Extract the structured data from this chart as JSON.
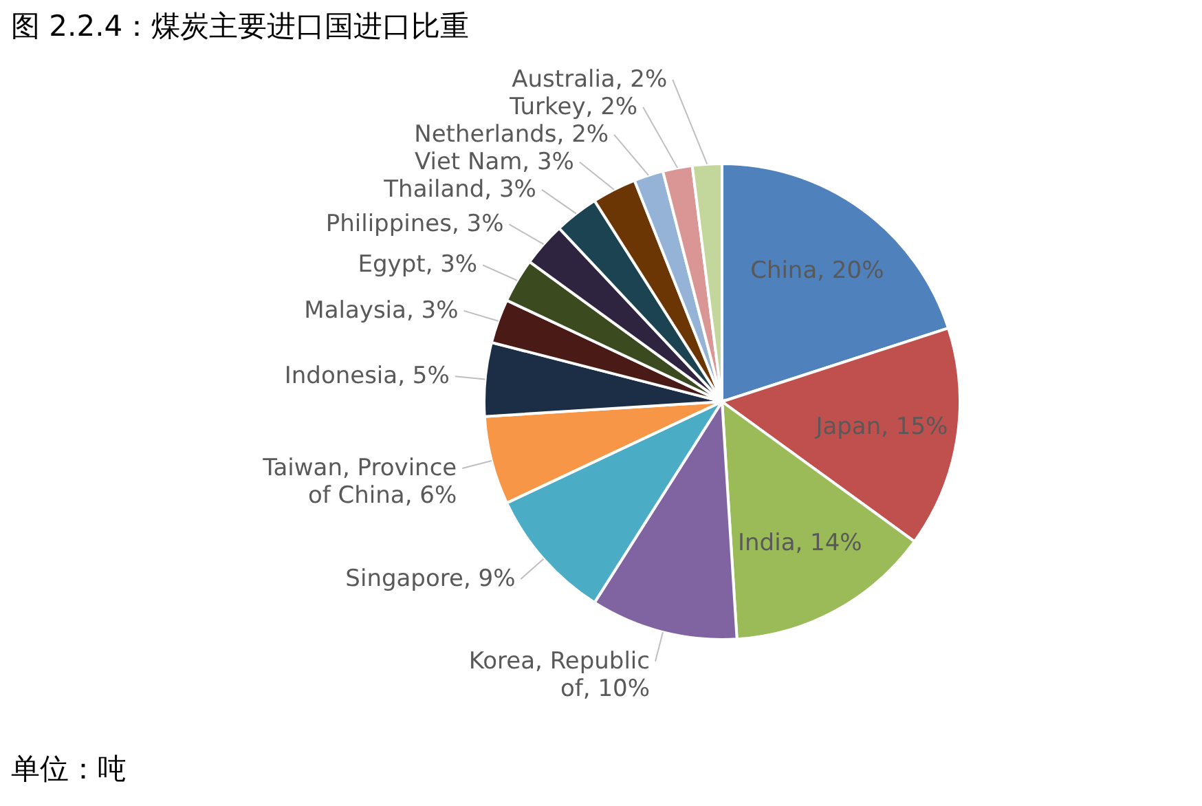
{
  "chart_data": {
    "type": "pie",
    "title": "图 2.2.4：煤炭主要进口国进口比重",
    "categories": [
      "China",
      "Japan",
      "India",
      "Korea, Republic of",
      "Singapore",
      "Taiwan, Province of China",
      "Indonesia",
      "Malaysia",
      "Egypt",
      "Philippines",
      "Thailand",
      "Viet Nam",
      "Netherlands",
      "Turkey",
      "Australia"
    ],
    "values": [
      20,
      15,
      14,
      10,
      9,
      6,
      5,
      3,
      3,
      3,
      3,
      3,
      2,
      2,
      2
    ],
    "colors": [
      "#4f81bd",
      "#c0504d",
      "#9bbb59",
      "#8064a2",
      "#4bacc6",
      "#f79646",
      "#1c2d46",
      "#4a1a17",
      "#3b4a1f",
      "#2f2440",
      "#1b4352",
      "#6b3604",
      "#95b3d7",
      "#d99694",
      "#c3d69b"
    ],
    "value_labels": [
      "20%",
      "15%",
      "14%",
      "10%",
      "9%",
      "6%",
      "5%",
      "3%",
      "3%",
      "3%",
      "3%",
      "3%",
      "2%",
      "2%",
      "2%"
    ],
    "annotations": [
      "单位：吨"
    ]
  }
}
